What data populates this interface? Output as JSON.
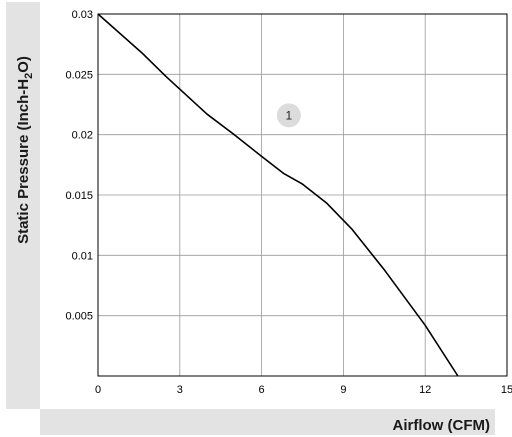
{
  "chart_data": {
    "type": "line",
    "xlabel": "Airflow (CFM)",
    "ylabel_parts": [
      "Static Pressure (Inch-H",
      "2",
      "O)"
    ],
    "xlim": [
      0,
      15
    ],
    "ylim": [
      0,
      0.03
    ],
    "x_ticks": [
      {
        "value": 0,
        "label": "0"
      },
      {
        "value": 3,
        "label": "3"
      },
      {
        "value": 6,
        "label": "6"
      },
      {
        "value": 9,
        "label": "9"
      },
      {
        "value": 12,
        "label": "12"
      },
      {
        "value": 15,
        "label": "15"
      }
    ],
    "y_ticks": [
      {
        "value": 0.005,
        "label": "0.005"
      },
      {
        "value": 0.01,
        "label": "0.01"
      },
      {
        "value": 0.015,
        "label": "0.015"
      },
      {
        "value": 0.02,
        "label": "0.02"
      },
      {
        "value": 0.025,
        "label": "0.025"
      },
      {
        "value": 0.03,
        "label": "0.03"
      }
    ],
    "grid": true,
    "series": [
      {
        "color": "#000000",
        "x": [
          0,
          1.6,
          2.5,
          4.0,
          5.0,
          6.0,
          6.8,
          7.5,
          8.4,
          9.3,
          10.5,
          12.0,
          13.2
        ],
        "y": [
          0.03,
          0.0268,
          0.0248,
          0.0217,
          0.02,
          0.0182,
          0.0168,
          0.0159,
          0.0143,
          0.0122,
          0.0088,
          0.0042,
          0.0
        ]
      }
    ],
    "annotations": [
      {
        "text": "1",
        "x": 7.0,
        "y": 0.0216
      }
    ]
  }
}
